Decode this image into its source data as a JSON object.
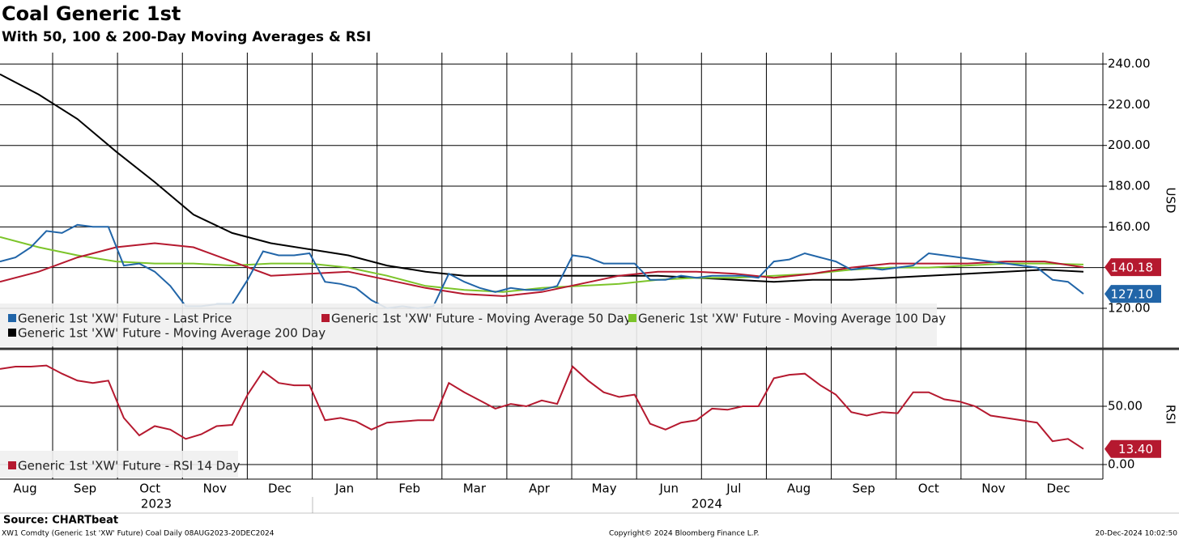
{
  "title": "Coal Generic 1st",
  "subtitle": "With 50, 100 & 200-Day Moving Averages & RSI",
  "x_axis": {
    "categories": [
      "Aug",
      "Sep",
      "Oct",
      "Nov",
      "Dec",
      "Jan",
      "Feb",
      "Mar",
      "Apr",
      "May",
      "Jun",
      "Jul",
      "Aug",
      "Sep",
      "Oct",
      "Nov",
      "Dec"
    ],
    "years": [
      "2023",
      "2024"
    ]
  },
  "chart_data": [
    {
      "type": "line",
      "ylabel": "USD",
      "ylim": [
        100.5,
        245.6
      ],
      "yticks": [
        {
          "value": 120,
          "label": "120.00"
        },
        {
          "value": 140,
          "label": ""
        },
        {
          "value": 160,
          "label": "160.00"
        },
        {
          "value": 180,
          "label": "180.00"
        },
        {
          "value": 200,
          "label": "200.00"
        },
        {
          "value": 220,
          "label": "220.00"
        },
        {
          "value": 240,
          "label": "240.00"
        }
      ],
      "grid": true,
      "series": [
        {
          "name": "Generic 1st 'XW' Future - Last Price",
          "color": "#2165a8",
          "last_value_label": "127.10",
          "values": [
            143,
            145,
            150,
            158,
            157,
            161,
            160,
            160,
            141,
            142,
            138,
            131,
            121,
            121,
            122,
            122,
            134,
            148,
            146,
            146,
            147,
            133,
            132,
            130,
            124,
            120,
            121,
            120,
            121,
            137,
            133,
            130,
            128,
            130,
            129,
            129,
            131,
            146,
            145,
            142,
            142,
            142,
            134,
            134,
            136,
            135,
            136,
            136,
            136,
            135,
            143,
            144,
            147,
            145,
            143,
            139,
            140,
            139,
            140,
            141,
            147,
            146,
            145,
            144,
            143,
            142,
            141,
            140,
            134,
            133,
            127.1
          ]
        },
        {
          "name": "Generic 1st 'XW' Future - Moving Average 50 Day",
          "color": "#b5192f",
          "last_value_label": "140.18",
          "values": [
            133,
            138,
            145,
            150,
            152,
            150,
            143,
            136,
            137,
            138,
            134,
            130,
            127,
            126,
            128,
            132,
            136,
            138,
            138,
            137,
            135,
            137,
            140,
            142,
            142,
            142,
            143,
            143,
            140.18
          ]
        },
        {
          "name": "Generic 1st 'XW' Future - Moving Average 100 Day",
          "color": "#7cc42a",
          "values": [
            155,
            150,
            146,
            143,
            142,
            142,
            141,
            142,
            142,
            140,
            136,
            131,
            129,
            128,
            130,
            131,
            132,
            134,
            135,
            135,
            136,
            137,
            139,
            140,
            140,
            141,
            142,
            142,
            141.5
          ]
        },
        {
          "name": "Generic 1st 'XW' Future - Moving Average 200 Day",
          "color": "#000000",
          "values": [
            235,
            225,
            213,
            197,
            182,
            166,
            157,
            152,
            149,
            146,
            141,
            138,
            136,
            136,
            136,
            136,
            136,
            136,
            135,
            134,
            133,
            134,
            134,
            135,
            136,
            137,
            138,
            139,
            138
          ]
        }
      ]
    },
    {
      "type": "line",
      "ylabel": "RSI",
      "ylim": [
        -12.5,
        98.6
      ],
      "yticks": [
        {
          "value": 0,
          "label": "0.00"
        },
        {
          "value": 50,
          "label": "50.00"
        }
      ],
      "grid": true,
      "series": [
        {
          "name": "Generic 1st 'XW' Future - RSI 14 Day",
          "color": "#b5192f",
          "last_value_label": "13.40",
          "values": [
            82,
            84,
            84,
            85,
            78,
            72,
            70,
            72,
            40,
            25,
            33,
            30,
            22,
            26,
            33,
            34,
            60,
            80,
            70,
            68,
            68,
            38,
            40,
            37,
            30,
            36,
            37,
            38,
            38,
            70,
            62,
            55,
            48,
            52,
            50,
            55,
            52,
            84,
            72,
            62,
            58,
            60,
            35,
            30,
            36,
            38,
            48,
            47,
            50,
            50,
            74,
            77,
            78,
            68,
            60,
            45,
            42,
            45,
            44,
            62,
            62,
            56,
            54,
            50,
            42,
            40,
            38,
            36,
            20,
            22,
            13.4
          ]
        }
      ]
    }
  ],
  "footer": {
    "source": "Source: CHARTbeat",
    "description": "XW1 Comdty (Generic 1st 'XW' Future) Coal  Daily 08AUG2023-20DEC2024",
    "copyright": "Copyright© 2024 Bloomberg Finance L.P.",
    "timestamp": "20-Dec-2024 10:02:50"
  }
}
